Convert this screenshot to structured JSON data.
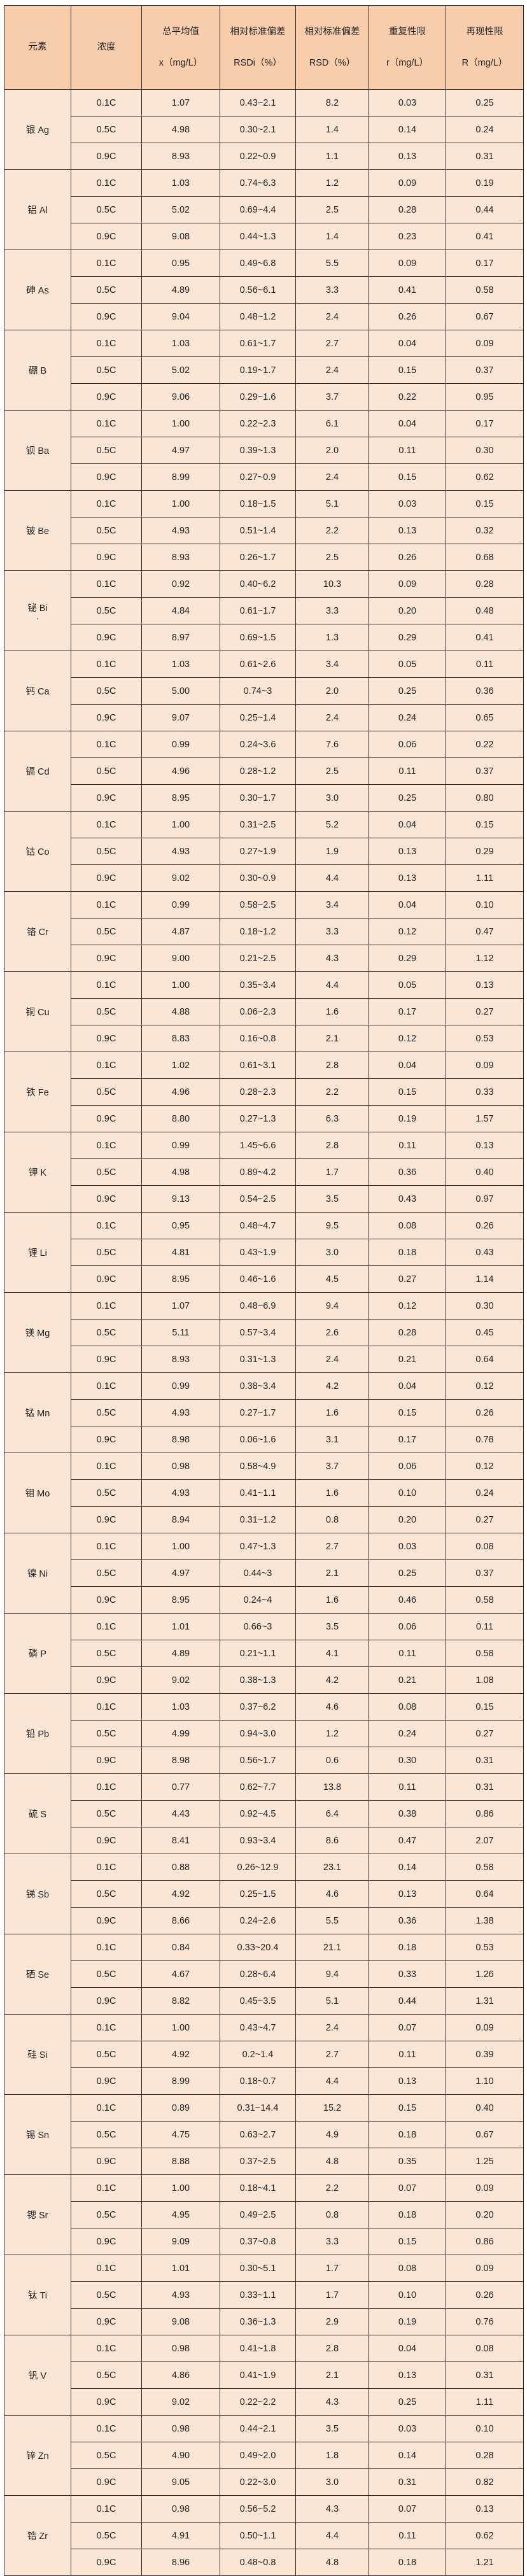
{
  "header": {
    "element": "元素",
    "concentration": "浓度",
    "mean": [
      "总平均值",
      "x（mg/L）"
    ],
    "rsdi": [
      "相对标准偏差",
      "RSDi（%）"
    ],
    "rsd": [
      "相对标准偏差",
      "RSD（%）"
    ],
    "repeatability": [
      "重复性限",
      "r（mg/L）"
    ],
    "reproducibility": [
      "再现性限",
      "R（mg/L）"
    ]
  },
  "colors": {
    "header_bg": "#f7cdab",
    "cell_bg": "#fbe6d5",
    "border": "#2a2a2a"
  },
  "groups": [
    {
      "element": "银 Ag",
      "rows": [
        [
          "0.1C",
          "1.07",
          "0.43~2.1",
          "8.2",
          "0.03",
          "0.25"
        ],
        [
          "0.5C",
          "4.98",
          "0.30~2.1",
          "1.4",
          "0.14",
          "0.24"
        ],
        [
          "0.9C",
          "8.93",
          "0.22~0.9",
          "1.1",
          "0.13",
          "0.31"
        ]
      ]
    },
    {
      "element": "铝 Al",
      "rows": [
        [
          "0.1C",
          "1.03",
          "0.74~6.3",
          "1.2",
          "0.09",
          "0.19"
        ],
        [
          "0.5C",
          "5.02",
          "0.69~4.4",
          "2.5",
          "0.28",
          "0.44"
        ],
        [
          "0.9C",
          "9.08",
          "0.44~1.3",
          "1.4",
          "0.23",
          "0.41"
        ]
      ]
    },
    {
      "element": "砷 As",
      "rows": [
        [
          "0.1C",
          "0.95",
          "0.49~6.8",
          "5.5",
          "0.09",
          "0.17"
        ],
        [
          "0.5C",
          "4.89",
          "0.56~6.1",
          "3.3",
          "0.41",
          "0.58"
        ],
        [
          "0.9C",
          "9.04",
          "0.48~1.2",
          "2.4",
          "0.26",
          "0.67"
        ]
      ]
    },
    {
      "element": "硼 B",
      "rows": [
        [
          "0.1C",
          "1.03",
          "0.61~1.7",
          "2.7",
          "0.04",
          "0.09"
        ],
        [
          "0.5C",
          "5.02",
          "0.19~1.7",
          "2.4",
          "0.15",
          "0.37"
        ],
        [
          "0.9C",
          "9.06",
          "0.29~1.6",
          "3.7",
          "0.22",
          "0.95"
        ]
      ]
    },
    {
      "element": "钡 Ba",
      "rows": [
        [
          "0.1C",
          "1.00",
          "0.22~2.3",
          "6.1",
          "0.04",
          "0.17"
        ],
        [
          "0.5C",
          "4.97",
          "0.39~1.3",
          "2.0",
          "0.11",
          "0.30"
        ],
        [
          "0.9C",
          "8.99",
          "0.27~0.9",
          "2.4",
          "0.15",
          "0.62"
        ]
      ]
    },
    {
      "element": "铍 Be",
      "rows": [
        [
          "0.1C",
          "1.00",
          "0.18~1.5",
          "5.1",
          "0.03",
          "0.15"
        ],
        [
          "0.5C",
          "4.93",
          "0.51~1.4",
          "2.2",
          "0.13",
          "0.32"
        ],
        [
          "0.9C",
          "8.93",
          "0.26~1.7",
          "2.5",
          "0.26",
          "0.68"
        ]
      ]
    },
    {
      "element": "铋 Bi",
      "mark": "·",
      "rows": [
        [
          "0.1C",
          "0.92",
          "0.40~6.2",
          "10.3",
          "0.09",
          "0.28"
        ],
        [
          "0.5C",
          "4.84",
          "0.61~1.7",
          "3.3",
          "0.20",
          "0.48"
        ],
        [
          "0.9C",
          "8.97",
          "0.69~1.5",
          "1.3",
          "0.29",
          "0.41"
        ]
      ]
    },
    {
      "element": "钙 Ca",
      "rows": [
        [
          "0.1C",
          "1.03",
          "0.61~2.6",
          "3.4",
          "0.05",
          "0.11"
        ],
        [
          "0.5C",
          "5.00",
          "0.74~3",
          "2.0",
          "0.25",
          "0.36"
        ],
        [
          "0.9C",
          "9.07",
          "0.25~1.4",
          "2.4",
          "0.24",
          "0.65"
        ]
      ]
    },
    {
      "element": "镉 Cd",
      "rows": [
        [
          "0.1C",
          "0.99",
          "0.24~3.6",
          "7.6",
          "0.06",
          "0.22"
        ],
        [
          "0.5C",
          "4.96",
          "0.28~1.2",
          "2.5",
          "0.11",
          "0.37"
        ],
        [
          "0.9C",
          "8.95",
          "0.30~1.7",
          "3.0",
          "0.25",
          "0.80"
        ]
      ]
    },
    {
      "element": "钴 Co",
      "rows": [
        [
          "0.1C",
          "1.00",
          "0.31~2.5",
          "5.2",
          "0.04",
          "0.15"
        ],
        [
          "0.5C",
          "4.93",
          "0.27~1.9",
          "1.9",
          "0.13",
          "0.29"
        ],
        [
          "0.9C",
          "9.02",
          "0.30~0.9",
          "4.4",
          "0.13",
          "1.11"
        ]
      ]
    },
    {
      "element": "铬 Cr",
      "rows": [
        [
          "0.1C",
          "0.99",
          "0.58~2.5",
          "3.4",
          "0.04",
          "0.10"
        ],
        [
          "0.5C",
          "4.87",
          "0.18~1.2",
          "3.3",
          "0.12",
          "0.47"
        ],
        [
          "0.9C",
          "9.00",
          "0.21~2.5",
          "4.3",
          "0.29",
          "1.12"
        ]
      ]
    },
    {
      "element": "铜 Cu",
      "rows": [
        [
          "0.1C",
          "1.00",
          "0.35~3.4",
          "4.4",
          "0.05",
          "0.13"
        ],
        [
          "0.5C",
          "4.88",
          "0.06~2.3",
          "1.6",
          "0.17",
          "0.27"
        ],
        [
          "0.9C",
          "8.83",
          "0.16~0.8",
          "2.1",
          "0.12",
          "0.53"
        ]
      ]
    },
    {
      "element": "铁 Fe",
      "rows": [
        [
          "0.1C",
          "1.02",
          "0.61~3.1",
          "2.8",
          "0.04",
          "0.09"
        ],
        [
          "0.5C",
          "4.96",
          "0.28~2.3",
          "2.2",
          "0.15",
          "0.33"
        ],
        [
          "0.9C",
          "8.80",
          "0.27~1.3",
          "6.3",
          "0.19",
          "1.57"
        ]
      ]
    },
    {
      "element": "钾 K",
      "rows": [
        [
          "0.1C",
          "0.99",
          "1.45~6.6",
          "2.8",
          "0.11",
          "0.13"
        ],
        [
          "0.5C",
          "4.98",
          "0.89~4.2",
          "1.7",
          "0.36",
          "0.40"
        ],
        [
          "0.9C",
          "9.13",
          "0.54~2.5",
          "3.5",
          "0.43",
          "0.97"
        ]
      ]
    },
    {
      "element": "锂 Li",
      "rows": [
        [
          "0.1C",
          "0.95",
          "0.48~4.7",
          "9.5",
          "0.08",
          "0.26"
        ],
        [
          "0.5C",
          "4.81",
          "0.43~1.9",
          "3.0",
          "0.18",
          "0.43"
        ],
        [
          "0.9C",
          "8.95",
          "0.46~1.6",
          "4.5",
          "0.27",
          "1.14"
        ]
      ]
    },
    {
      "element": "镁 Mg",
      "rows": [
        [
          "0.1C",
          "1.07",
          "0.48~6.9",
          "9.4",
          "0.12",
          "0.30"
        ],
        [
          "0.5C",
          "5.11",
          "0.57~3.4",
          "2.6",
          "0.28",
          "0.45"
        ],
        [
          "0.9C",
          "8.93",
          "0.31~1.3",
          "2.4",
          "0.21",
          "0.64"
        ]
      ]
    },
    {
      "element": "锰 Mn",
      "rows": [
        [
          "0.1C",
          "0.99",
          "0.38~3.4",
          "4.2",
          "0.04",
          "0.12"
        ],
        [
          "0.5C",
          "4.93",
          "0.27~1.7",
          "1.6",
          "0.15",
          "0.26"
        ],
        [
          "0.9C",
          "8.98",
          "0.06~1.6",
          "3.1",
          "0.17",
          "0.78"
        ]
      ]
    },
    {
      "element": "钼 Mo",
      "rows": [
        [
          "0.1C",
          "0.98",
          "0.58~4.9",
          "3.7",
          "0.06",
          "0.12"
        ],
        [
          "0.5C",
          "4.93",
          "0.41~1.1",
          "1.6",
          "0.10",
          "0.24"
        ],
        [
          "0.9C",
          "8.94",
          "0.31~1.2",
          "0.8",
          "0.20",
          "0.27"
        ]
      ]
    },
    {
      "element": "镍 Ni",
      "rows": [
        [
          "0.1C",
          "1.00",
          "0.47~1.3",
          "2.7",
          "0.03",
          "0.08"
        ],
        [
          "0.5C",
          "4.97",
          "0.44~3",
          "2.1",
          "0.25",
          "0.37"
        ],
        [
          "0.9C",
          "8.95",
          "0.24~4",
          "1.6",
          "0.46",
          "0.58"
        ]
      ]
    },
    {
      "element": "磷 P",
      "rows": [
        [
          "0.1C",
          "1.01",
          "0.66~3",
          "3.5",
          "0.06",
          "0.11"
        ],
        [
          "0.5C",
          "4.89",
          "0.21~1.1",
          "4.1",
          "0.11",
          "0.58"
        ],
        [
          "0.9C",
          "9.02",
          "0.38~1.3",
          "4.2",
          "0.21",
          "1.08"
        ]
      ]
    },
    {
      "element": "铅 Pb",
      "rows": [
        [
          "0.1C",
          "1.03",
          "0.37~6.2",
          "4.6",
          "0.08",
          "0.15"
        ],
        [
          "0.5C",
          "4.99",
          "0.94~3.0",
          "1.2",
          "0.24",
          "0.27"
        ],
        [
          "0.9C",
          "8.98",
          "0.56~1.7",
          "0.6",
          "0.30",
          "0.31"
        ]
      ]
    },
    {
      "element": "硫 S",
      "rows": [
        [
          "0.1C",
          "0.77",
          "0.62~7.7",
          "13.8",
          "0.11",
          "0.31"
        ],
        [
          "0.5C",
          "4.43",
          "0.92~4.5",
          "6.4",
          "0.38",
          "0.86"
        ],
        [
          "0.9C",
          "8.41",
          "0.93~3.4",
          "8.6",
          "0.47",
          "2.07"
        ]
      ]
    },
    {
      "element": "锑 Sb",
      "rows": [
        [
          "0.1C",
          "0.88",
          "0.26~12.9",
          "23.1",
          "0.14",
          "0.58"
        ],
        [
          "0.5C",
          "4.92",
          "0.25~1.5",
          "4.6",
          "0.13",
          "0.64"
        ],
        [
          "0.9C",
          "8.66",
          "0.24~2.6",
          "5.5",
          "0.36",
          "1.38"
        ]
      ]
    },
    {
      "element": "硒 Se",
      "rows": [
        [
          "0.1C",
          "0.84",
          "0.33~20.4",
          "21.1",
          "0.18",
          "0.53"
        ],
        [
          "0.5C",
          "4.67",
          "0.28~6.4",
          "9.4",
          "0.33",
          "1.26"
        ],
        [
          "0.9C",
          "8.82",
          "0.45~3.5",
          "5.1",
          "0.44",
          "1.31"
        ]
      ]
    },
    {
      "element": "硅 Si",
      "rows": [
        [
          "0.1C",
          "1.00",
          "0.43~4.7",
          "2.4",
          "0.07",
          "0.09"
        ],
        [
          "0.5C",
          "4.92",
          "0.2~1.4",
          "2.7",
          "0.11",
          "0.39"
        ],
        [
          "0.9C",
          "8.99",
          "0.18~0.7",
          "4.4",
          "0.13",
          "1.10"
        ]
      ]
    },
    {
      "element": "锡 Sn",
      "rows": [
        [
          "0.1C",
          "0.89",
          "0.31~14.4",
          "15.2",
          "0.15",
          "0.40"
        ],
        [
          "0.5C",
          "4.75",
          "0.63~2.7",
          "4.9",
          "0.18",
          "0.67"
        ],
        [
          "0.9C",
          "8.88",
          "0.37~2.5",
          "4.8",
          "0.35",
          "1.25"
        ]
      ]
    },
    {
      "element": "锶 Sr",
      "rows": [
        [
          "0.1C",
          "1.00",
          "0.18~4.1",
          "2.2",
          "0.07",
          "0.09"
        ],
        [
          "0.5C",
          "4.95",
          "0.49~2.5",
          "0.8",
          "0.18",
          "0.20"
        ],
        [
          "0.9C",
          "9.09",
          "0.37~0.8",
          "3.3",
          "0.15",
          "0.86"
        ]
      ]
    },
    {
      "element": "钛 Ti",
      "rows": [
        [
          "0.1C",
          "1.01",
          "0.30~5.1",
          "1.7",
          "0.08",
          "0.09"
        ],
        [
          "0.5C",
          "4.93",
          "0.33~1.1",
          "1.7",
          "0.10",
          "0.26"
        ],
        [
          "0.9C",
          "9.08",
          "0.36~1.3",
          "2.9",
          "0.19",
          "0.76"
        ]
      ]
    },
    {
      "element": "钒 V",
      "rows": [
        [
          "0.1C",
          "0.98",
          "0.41~1.8",
          "2.8",
          "0.04",
          "0.08"
        ],
        [
          "0.5C",
          "4.86",
          "0.41~1.9",
          "2.1",
          "0.13",
          "0.31"
        ],
        [
          "0.9C",
          "9.02",
          "0.22~2.2",
          "4.3",
          "0.25",
          "1.11"
        ]
      ]
    },
    {
      "element": "锌 Zn",
      "rows": [
        [
          "0.1C",
          "0.98",
          "0.44~2.1",
          "3.5",
          "0.03",
          "0.10"
        ],
        [
          "0.5C",
          "4.90",
          "0.49~2.0",
          "1.8",
          "0.14",
          "0.28"
        ],
        [
          "0.9C",
          "9.05",
          "0.22~3.0",
          "3.0",
          "0.31",
          "0.82"
        ]
      ]
    },
    {
      "element": "锆 Zr",
      "rows": [
        [
          "0.1C",
          "0.98",
          "0.56~5.2",
          "4.3",
          "0.07",
          "0.13"
        ],
        [
          "0.5C",
          "4.91",
          "0.50~1.1",
          "4.4",
          "0.11",
          "0.62"
        ],
        [
          "0.9C",
          "8.96",
          "0.48~0.8",
          "4.8",
          "0.18",
          "1.21"
        ]
      ]
    }
  ]
}
